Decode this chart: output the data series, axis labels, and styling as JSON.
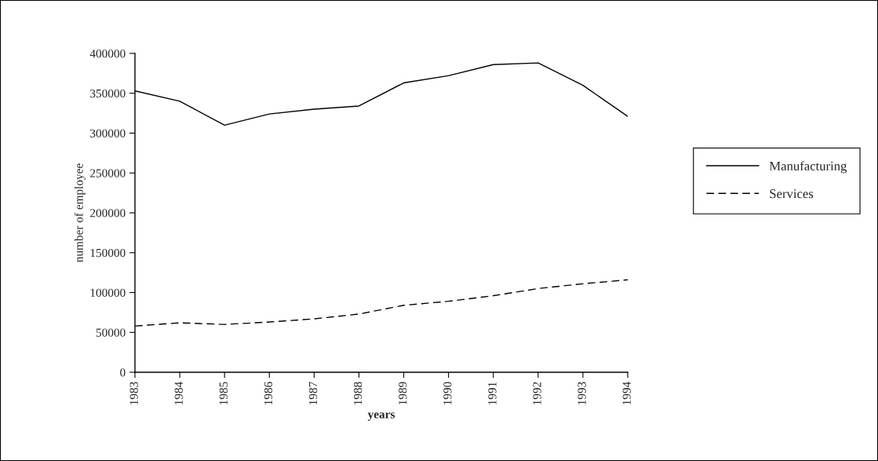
{
  "chart_data": {
    "type": "line",
    "xlabel": "years",
    "ylabel": "number of employee",
    "categories": [
      "1983",
      "1984",
      "1985",
      "1986",
      "1987",
      "1988",
      "1989",
      "1990",
      "1991",
      "1992",
      "1993",
      "1994"
    ],
    "series": [
      {
        "name": "Manufacturing",
        "color": "#000000",
        "line_style": "solid",
        "values": [
          353000,
          340000,
          310000,
          324000,
          330000,
          334000,
          363000,
          372000,
          386000,
          388000,
          360000,
          321000
        ]
      },
      {
        "name": "Services",
        "color": "#000000",
        "line_style": "dashed",
        "values": [
          58000,
          62000,
          60000,
          63000,
          67000,
          73000,
          84000,
          89000,
          96000,
          105000,
          111000,
          116000
        ]
      }
    ],
    "ylim": [
      0,
      400000
    ],
    "yticks": [
      0,
      50000,
      100000,
      150000,
      200000,
      250000,
      300000,
      350000,
      400000
    ],
    "grid": false,
    "legend": "right",
    "marker": "none"
  }
}
